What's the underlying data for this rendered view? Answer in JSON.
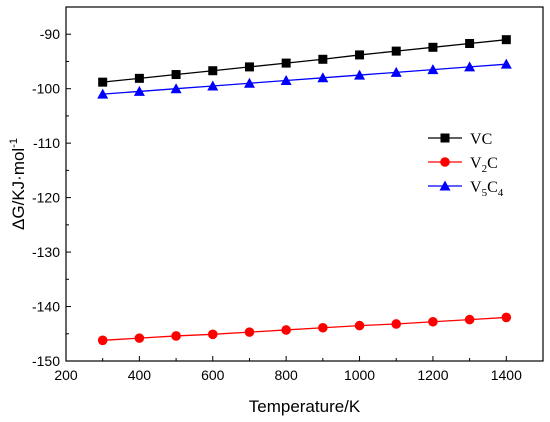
{
  "chart_data": {
    "type": "line",
    "xlabel": "Temperature/K",
    "ylabel_parts": [
      "ΔG/KJ·mol",
      "-1"
    ],
    "xlim": [
      200,
      1500
    ],
    "ylim": [
      -150,
      -85
    ],
    "xticks": [
      "200",
      "400",
      "600",
      "800",
      "1000",
      "1200",
      "1400"
    ],
    "yticks": [
      "-150",
      "-140",
      "-130",
      "-120",
      "-110",
      "-100",
      "-90"
    ],
    "grid": false,
    "legend_position": "right",
    "x": [
      300,
      400,
      500,
      600,
      700,
      800,
      900,
      1000,
      1100,
      1200,
      1300,
      1400
    ],
    "series": [
      {
        "name": "VC",
        "name_parts": [
          "V",
          "",
          "C",
          ""
        ],
        "color": "#000000",
        "marker": "square",
        "values": [
          -98.8,
          -98.1,
          -97.4,
          -96.7,
          -96.0,
          -95.3,
          -94.6,
          -93.8,
          -93.1,
          -92.4,
          -91.7,
          -91.0
        ]
      },
      {
        "name": "V2C",
        "name_parts": [
          "V",
          "2",
          "C",
          ""
        ],
        "color": "#ff0000",
        "marker": "circle",
        "values": [
          -146.2,
          -145.8,
          -145.4,
          -145.1,
          -144.7,
          -144.3,
          -143.9,
          -143.5,
          -143.2,
          -142.8,
          -142.4,
          -142.0
        ]
      },
      {
        "name": "V5C4",
        "name_parts": [
          "V",
          "5",
          "C",
          "4"
        ],
        "color": "#0000ff",
        "marker": "triangle",
        "values": [
          -101.0,
          -100.5,
          -100.0,
          -99.5,
          -99.0,
          -98.5,
          -98.0,
          -97.5,
          -97.0,
          -96.5,
          -96.0,
          -95.5
        ]
      }
    ]
  }
}
